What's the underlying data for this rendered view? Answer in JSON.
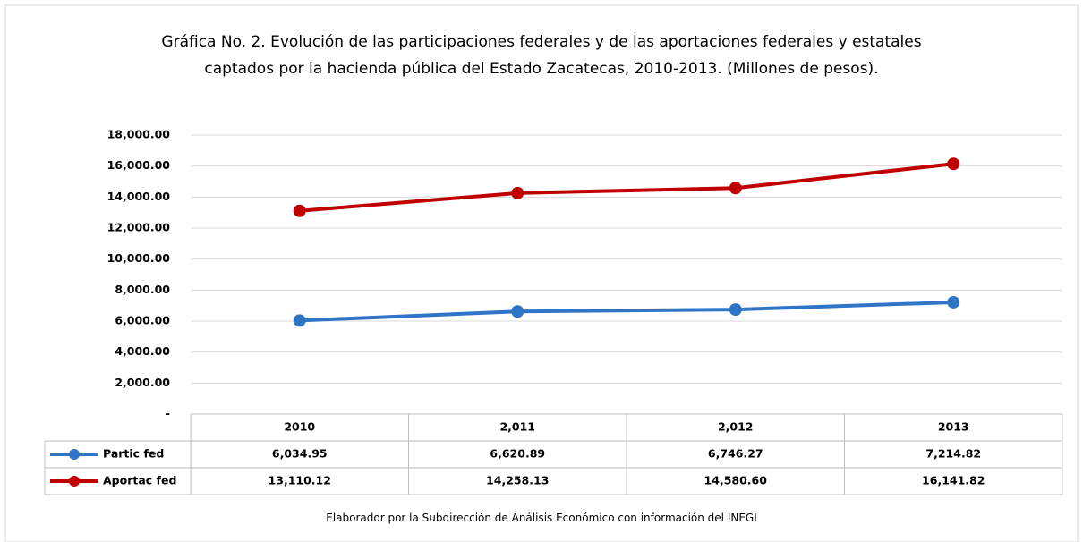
{
  "chart_data": {
    "type": "line",
    "title": "Gráfica No. 2. Evolución de las participaciones federales y de las aportaciones federales y estatales captados por la hacienda pública del Estado Zacatecas, 2010-2013. (Millones de pesos).",
    "categories": [
      "2010",
      "2,011",
      "2,012",
      "2013"
    ],
    "series": [
      {
        "name": "Partic fed",
        "color": "#2e75c6",
        "values": [
          6034.95,
          6620.89,
          6746.27,
          7214.82
        ],
        "value_labels": [
          "6,034.95",
          "6,620.89",
          "6,746.27",
          "7,214.82"
        ]
      },
      {
        "name": "Aportac fed",
        "color": "#c00000",
        "values": [
          13110.12,
          14258.13,
          14580.6,
          16141.82
        ],
        "value_labels": [
          "13,110.12",
          "14,258.13",
          "14,580.60",
          "16,141.82"
        ]
      }
    ],
    "ylim": [
      0,
      18000
    ],
    "yticks": [
      {
        "value": 0,
        "label": "-"
      },
      {
        "value": 2000,
        "label": "2,000.00"
      },
      {
        "value": 4000,
        "label": "4,000.00"
      },
      {
        "value": 6000,
        "label": "6,000.00"
      },
      {
        "value": 8000,
        "label": "8,000.00"
      },
      {
        "value": 10000,
        "label": "10,000.00"
      },
      {
        "value": 12000,
        "label": "12,000.00"
      },
      {
        "value": 14000,
        "label": "14,000.00"
      },
      {
        "value": 16000,
        "label": "16,000.00"
      },
      {
        "value": 18000,
        "label": "18,000.00"
      }
    ],
    "grid": true,
    "note": "Elaborador por la Subdirección de Análisis Económico con información del INEGI"
  }
}
